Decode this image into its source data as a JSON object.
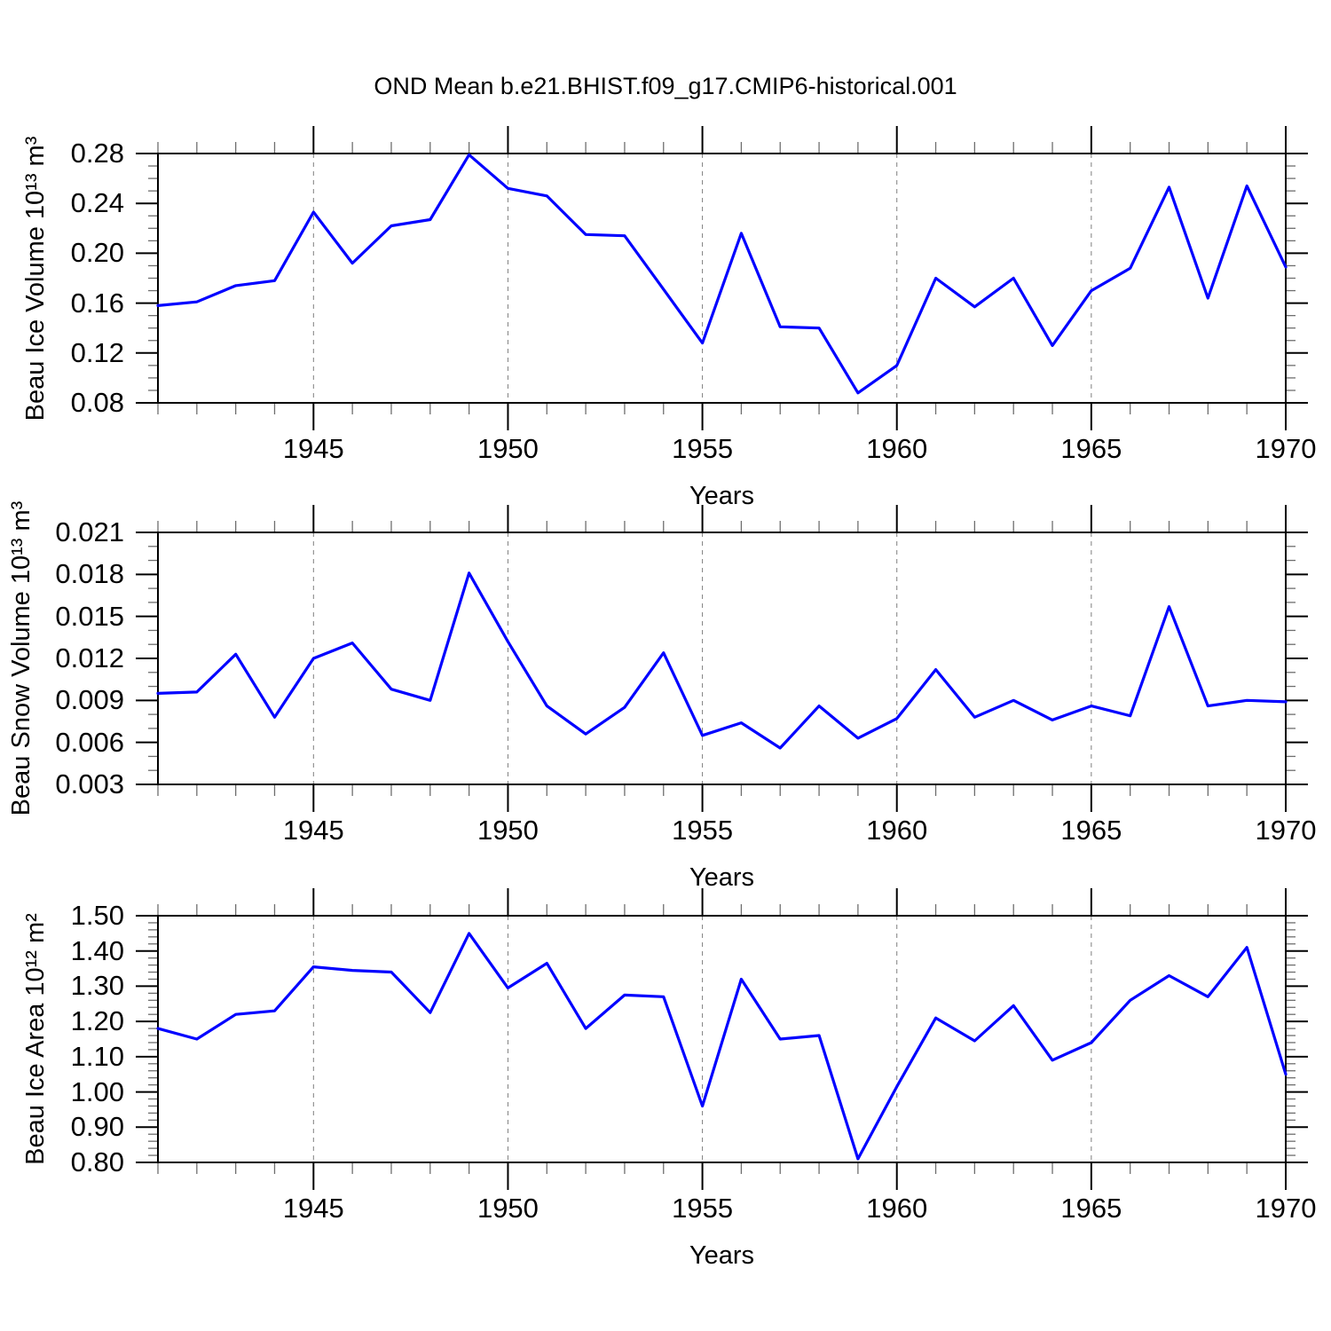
{
  "title": "OND Mean b.e21.BHIST.f09_g17.CMIP6-historical.001",
  "years": [
    1941,
    1942,
    1943,
    1944,
    1945,
    1946,
    1947,
    1948,
    1949,
    1950,
    1951,
    1952,
    1953,
    1954,
    1955,
    1956,
    1957,
    1958,
    1959,
    1960,
    1961,
    1962,
    1963,
    1964,
    1965,
    1966,
    1967,
    1968,
    1969,
    1970
  ],
  "chart_data": [
    {
      "type": "line",
      "name": "beau-ice-volume",
      "ylabel": "Beau Ice Volume 10¹³ m³",
      "xlabel": "Years",
      "ylim": [
        0.08,
        0.28
      ],
      "yticks": [
        "0.08",
        "0.12",
        "0.16",
        "0.20",
        "0.24",
        "0.28"
      ],
      "yminor_step": 0.01,
      "xticks": [
        1945,
        1950,
        1955,
        1960,
        1965,
        1970
      ],
      "xminor_step": 1,
      "grid_years": [
        1945,
        1950,
        1955,
        1960,
        1965
      ],
      "grid_on": true,
      "legend": "none",
      "line_color": "#0000ff",
      "grid_color": "#7f7f7f",
      "values": [
        0.158,
        0.161,
        0.174,
        0.178,
        0.233,
        0.192,
        0.222,
        0.227,
        0.279,
        0.252,
        0.246,
        0.215,
        0.214,
        0.171,
        0.128,
        0.216,
        0.141,
        0.14,
        0.088,
        0.11,
        0.18,
        0.157,
        0.18,
        0.126,
        0.17,
        0.188,
        0.253,
        0.164,
        0.254,
        0.189
      ]
    },
    {
      "type": "line",
      "name": "beau-snow-volume",
      "ylabel": "Beau Snow Volume 10¹³ m³",
      "xlabel": "Years",
      "ylim": [
        0.003,
        0.021
      ],
      "yticks": [
        "0.003",
        "0.006",
        "0.009",
        "0.012",
        "0.015",
        "0.018",
        "0.021"
      ],
      "yminor_step": 0.001,
      "xticks": [
        1945,
        1950,
        1955,
        1960,
        1965,
        1970
      ],
      "xminor_step": 1,
      "grid_years": [
        1945,
        1950,
        1955,
        1960,
        1965
      ],
      "grid_on": true,
      "legend": "none",
      "line_color": "#0000ff",
      "grid_color": "#7f7f7f",
      "values": [
        0.0095,
        0.0096,
        0.0123,
        0.0078,
        0.012,
        0.0131,
        0.0098,
        0.009,
        0.0181,
        0.0132,
        0.0086,
        0.0066,
        0.0085,
        0.0124,
        0.0065,
        0.0074,
        0.0056,
        0.0086,
        0.0063,
        0.0077,
        0.0112,
        0.0078,
        0.009,
        0.0076,
        0.0086,
        0.0079,
        0.0157,
        0.0086,
        0.009,
        0.0089
      ]
    },
    {
      "type": "line",
      "name": "beau-ice-area",
      "ylabel": "Beau Ice Area 10¹² m²",
      "xlabel": "Years",
      "ylim": [
        0.8,
        1.5
      ],
      "yticks": [
        "0.80",
        "0.90",
        "1.00",
        "1.10",
        "1.20",
        "1.30",
        "1.40",
        "1.50"
      ],
      "yminor_step": 0.02,
      "xticks": [
        1945,
        1950,
        1955,
        1960,
        1965,
        1970
      ],
      "xminor_step": 1,
      "grid_years": [
        1945,
        1950,
        1955,
        1960,
        1965
      ],
      "grid_on": true,
      "legend": "none",
      "line_color": "#0000ff",
      "grid_color": "#7f7f7f",
      "values": [
        1.18,
        1.15,
        1.22,
        1.23,
        1.355,
        1.345,
        1.34,
        1.225,
        1.45,
        1.295,
        1.365,
        1.18,
        1.275,
        1.27,
        0.96,
        1.32,
        1.15,
        1.16,
        0.81,
        1.015,
        1.21,
        1.145,
        1.245,
        1.09,
        1.14,
        1.26,
        1.33,
        1.27,
        1.41,
        1.05
      ]
    }
  ]
}
